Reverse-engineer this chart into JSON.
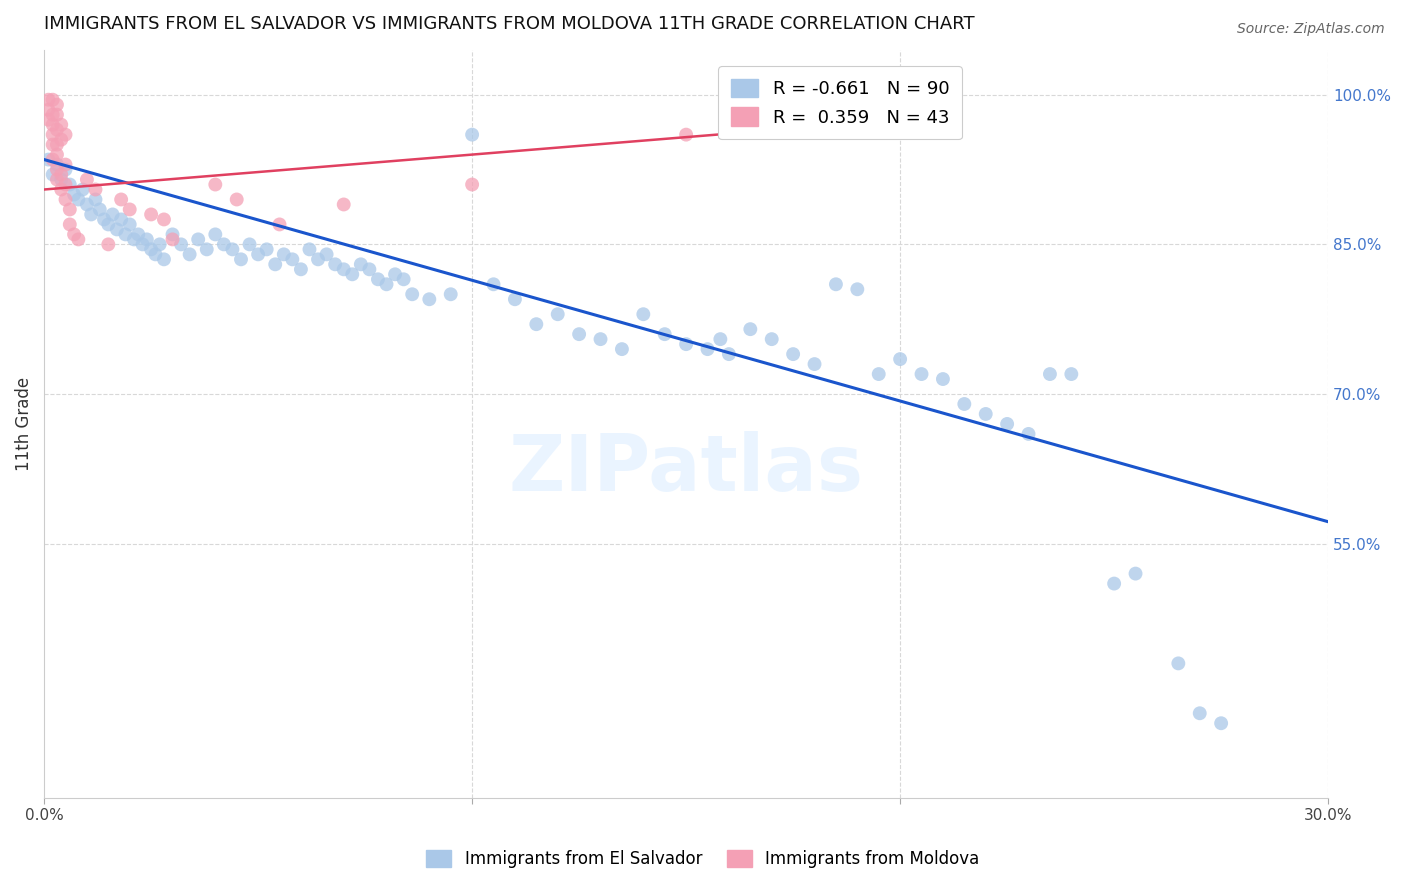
{
  "title": "IMMIGRANTS FROM EL SALVADOR VS IMMIGRANTS FROM MOLDOVA 11TH GRADE CORRELATION CHART",
  "source": "Source: ZipAtlas.com",
  "ylabel": "11th Grade",
  "ylabel_right_ticks": [
    "100.0%",
    "85.0%",
    "70.0%",
    "55.0%"
  ],
  "ylabel_right_values": [
    1.0,
    0.85,
    0.7,
    0.55
  ],
  "xlim": [
    0.0,
    0.3
  ],
  "ylim": [
    0.295,
    1.045
  ],
  "legend_blue_R": "-0.661",
  "legend_blue_N": "90",
  "legend_pink_R": "0.359",
  "legend_pink_N": "43",
  "blue_color": "#aac8e8",
  "pink_color": "#f4a0b5",
  "blue_line_color": "#1a55cc",
  "pink_line_color": "#e04060",
  "blue_scatter": [
    [
      0.001,
      0.935
    ],
    [
      0.002,
      0.92
    ],
    [
      0.003,
      0.93
    ],
    [
      0.004,
      0.915
    ],
    [
      0.005,
      0.925
    ],
    [
      0.006,
      0.91
    ],
    [
      0.007,
      0.9
    ],
    [
      0.008,
      0.895
    ],
    [
      0.009,
      0.905
    ],
    [
      0.01,
      0.89
    ],
    [
      0.011,
      0.88
    ],
    [
      0.012,
      0.895
    ],
    [
      0.013,
      0.885
    ],
    [
      0.014,
      0.875
    ],
    [
      0.015,
      0.87
    ],
    [
      0.016,
      0.88
    ],
    [
      0.017,
      0.865
    ],
    [
      0.018,
      0.875
    ],
    [
      0.019,
      0.86
    ],
    [
      0.02,
      0.87
    ],
    [
      0.021,
      0.855
    ],
    [
      0.022,
      0.86
    ],
    [
      0.023,
      0.85
    ],
    [
      0.024,
      0.855
    ],
    [
      0.025,
      0.845
    ],
    [
      0.026,
      0.84
    ],
    [
      0.027,
      0.85
    ],
    [
      0.028,
      0.835
    ],
    [
      0.03,
      0.86
    ],
    [
      0.032,
      0.85
    ],
    [
      0.034,
      0.84
    ],
    [
      0.036,
      0.855
    ],
    [
      0.038,
      0.845
    ],
    [
      0.04,
      0.86
    ],
    [
      0.042,
      0.85
    ],
    [
      0.044,
      0.845
    ],
    [
      0.046,
      0.835
    ],
    [
      0.048,
      0.85
    ],
    [
      0.05,
      0.84
    ],
    [
      0.052,
      0.845
    ],
    [
      0.054,
      0.83
    ],
    [
      0.056,
      0.84
    ],
    [
      0.058,
      0.835
    ],
    [
      0.06,
      0.825
    ],
    [
      0.062,
      0.845
    ],
    [
      0.064,
      0.835
    ],
    [
      0.066,
      0.84
    ],
    [
      0.068,
      0.83
    ],
    [
      0.07,
      0.825
    ],
    [
      0.072,
      0.82
    ],
    [
      0.074,
      0.83
    ],
    [
      0.076,
      0.825
    ],
    [
      0.078,
      0.815
    ],
    [
      0.08,
      0.81
    ],
    [
      0.082,
      0.82
    ],
    [
      0.084,
      0.815
    ],
    [
      0.086,
      0.8
    ],
    [
      0.09,
      0.795
    ],
    [
      0.095,
      0.8
    ],
    [
      0.1,
      0.96
    ],
    [
      0.105,
      0.81
    ],
    [
      0.11,
      0.795
    ],
    [
      0.115,
      0.77
    ],
    [
      0.12,
      0.78
    ],
    [
      0.125,
      0.76
    ],
    [
      0.13,
      0.755
    ],
    [
      0.135,
      0.745
    ],
    [
      0.14,
      0.78
    ],
    [
      0.145,
      0.76
    ],
    [
      0.15,
      0.75
    ],
    [
      0.155,
      0.745
    ],
    [
      0.158,
      0.755
    ],
    [
      0.16,
      0.74
    ],
    [
      0.165,
      0.765
    ],
    [
      0.17,
      0.755
    ],
    [
      0.175,
      0.74
    ],
    [
      0.18,
      0.73
    ],
    [
      0.185,
      0.81
    ],
    [
      0.19,
      0.805
    ],
    [
      0.195,
      0.72
    ],
    [
      0.2,
      0.735
    ],
    [
      0.205,
      0.72
    ],
    [
      0.21,
      0.715
    ],
    [
      0.215,
      0.69
    ],
    [
      0.22,
      0.68
    ],
    [
      0.225,
      0.67
    ],
    [
      0.23,
      0.66
    ],
    [
      0.235,
      0.72
    ],
    [
      0.24,
      0.72
    ],
    [
      0.25,
      0.51
    ],
    [
      0.255,
      0.52
    ],
    [
      0.265,
      0.43
    ],
    [
      0.27,
      0.38
    ],
    [
      0.275,
      0.37
    ]
  ],
  "pink_scatter": [
    [
      0.001,
      0.995
    ],
    [
      0.001,
      0.985
    ],
    [
      0.001,
      0.975
    ],
    [
      0.002,
      0.995
    ],
    [
      0.002,
      0.98
    ],
    [
      0.002,
      0.97
    ],
    [
      0.002,
      0.96
    ],
    [
      0.002,
      0.95
    ],
    [
      0.002,
      0.935
    ],
    [
      0.003,
      0.99
    ],
    [
      0.003,
      0.98
    ],
    [
      0.003,
      0.965
    ],
    [
      0.003,
      0.95
    ],
    [
      0.003,
      0.94
    ],
    [
      0.003,
      0.925
    ],
    [
      0.003,
      0.915
    ],
    [
      0.004,
      0.97
    ],
    [
      0.004,
      0.955
    ],
    [
      0.004,
      0.92
    ],
    [
      0.004,
      0.905
    ],
    [
      0.005,
      0.96
    ],
    [
      0.005,
      0.93
    ],
    [
      0.005,
      0.91
    ],
    [
      0.005,
      0.895
    ],
    [
      0.006,
      0.885
    ],
    [
      0.006,
      0.87
    ],
    [
      0.007,
      0.86
    ],
    [
      0.008,
      0.855
    ],
    [
      0.01,
      0.915
    ],
    [
      0.012,
      0.905
    ],
    [
      0.015,
      0.85
    ],
    [
      0.018,
      0.895
    ],
    [
      0.02,
      0.885
    ],
    [
      0.025,
      0.88
    ],
    [
      0.028,
      0.875
    ],
    [
      0.03,
      0.855
    ],
    [
      0.04,
      0.91
    ],
    [
      0.045,
      0.895
    ],
    [
      0.055,
      0.87
    ],
    [
      0.07,
      0.89
    ],
    [
      0.1,
      0.91
    ],
    [
      0.15,
      0.96
    ],
    [
      0.2,
      0.99
    ]
  ],
  "blue_line_x": [
    0.0,
    0.3
  ],
  "blue_line_y": [
    0.935,
    0.572
  ],
  "pink_line_x": [
    0.0,
    0.2
  ],
  "pink_line_y": [
    0.905,
    0.975
  ],
  "grid_color": "#d8d8d8",
  "background_color": "#ffffff",
  "title_fontsize": 13,
  "axis_fontsize": 11,
  "legend_fontsize": 13,
  "marker_size": 100
}
